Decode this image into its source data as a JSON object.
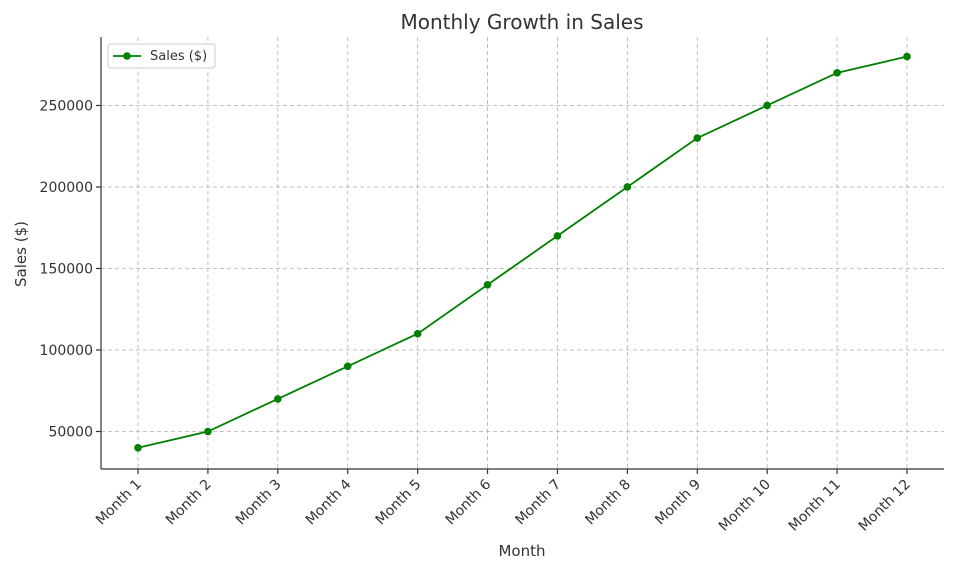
{
  "chart_data": {
    "type": "line",
    "title": "Monthly Growth in Sales",
    "xlabel": "Month",
    "ylabel": "Sales ($)",
    "categories": [
      "Month 1",
      "Month 2",
      "Month 3",
      "Month 4",
      "Month 5",
      "Month 6",
      "Month 7",
      "Month 8",
      "Month 9",
      "Month 10",
      "Month 11",
      "Month 12"
    ],
    "series": [
      {
        "name": "Sales ($)",
        "color": "#008000",
        "marker": "circle",
        "values": [
          40000,
          50000,
          70000,
          90000,
          110000,
          140000,
          170000,
          200000,
          230000,
          250000,
          270000,
          280000
        ]
      }
    ],
    "ylim": [
      27000,
      292000
    ],
    "yticks": [
      50000,
      100000,
      150000,
      200000,
      250000
    ],
    "ytick_labels": [
      "50000",
      "100000",
      "150000",
      "200000",
      "250000"
    ],
    "grid": true,
    "legend_position": "top-left"
  }
}
